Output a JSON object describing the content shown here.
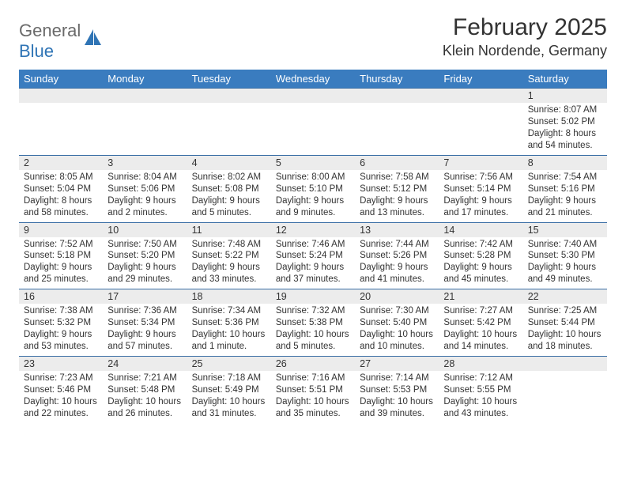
{
  "brand": {
    "main": "General",
    "sub": "Blue"
  },
  "title": "February 2025",
  "location": "Klein Nordende, Germany",
  "colors": {
    "header_bg": "#3a7cbf",
    "header_text": "#ffffff",
    "daynum_bg": "#ececec",
    "border": "#3a6ea5",
    "brand_main": "#6a6a6a",
    "brand_sub": "#2f74b5",
    "text": "#333333"
  },
  "day_headers": [
    "Sunday",
    "Monday",
    "Tuesday",
    "Wednesday",
    "Thursday",
    "Friday",
    "Saturday"
  ],
  "weeks": [
    [
      null,
      null,
      null,
      null,
      null,
      null,
      {
        "n": "1",
        "sr": "Sunrise: 8:07 AM",
        "ss": "Sunset: 5:02 PM",
        "dl": "Daylight: 8 hours and 54 minutes."
      }
    ],
    [
      {
        "n": "2",
        "sr": "Sunrise: 8:05 AM",
        "ss": "Sunset: 5:04 PM",
        "dl": "Daylight: 8 hours and 58 minutes."
      },
      {
        "n": "3",
        "sr": "Sunrise: 8:04 AM",
        "ss": "Sunset: 5:06 PM",
        "dl": "Daylight: 9 hours and 2 minutes."
      },
      {
        "n": "4",
        "sr": "Sunrise: 8:02 AM",
        "ss": "Sunset: 5:08 PM",
        "dl": "Daylight: 9 hours and 5 minutes."
      },
      {
        "n": "5",
        "sr": "Sunrise: 8:00 AM",
        "ss": "Sunset: 5:10 PM",
        "dl": "Daylight: 9 hours and 9 minutes."
      },
      {
        "n": "6",
        "sr": "Sunrise: 7:58 AM",
        "ss": "Sunset: 5:12 PM",
        "dl": "Daylight: 9 hours and 13 minutes."
      },
      {
        "n": "7",
        "sr": "Sunrise: 7:56 AM",
        "ss": "Sunset: 5:14 PM",
        "dl": "Daylight: 9 hours and 17 minutes."
      },
      {
        "n": "8",
        "sr": "Sunrise: 7:54 AM",
        "ss": "Sunset: 5:16 PM",
        "dl": "Daylight: 9 hours and 21 minutes."
      }
    ],
    [
      {
        "n": "9",
        "sr": "Sunrise: 7:52 AM",
        "ss": "Sunset: 5:18 PM",
        "dl": "Daylight: 9 hours and 25 minutes."
      },
      {
        "n": "10",
        "sr": "Sunrise: 7:50 AM",
        "ss": "Sunset: 5:20 PM",
        "dl": "Daylight: 9 hours and 29 minutes."
      },
      {
        "n": "11",
        "sr": "Sunrise: 7:48 AM",
        "ss": "Sunset: 5:22 PM",
        "dl": "Daylight: 9 hours and 33 minutes."
      },
      {
        "n": "12",
        "sr": "Sunrise: 7:46 AM",
        "ss": "Sunset: 5:24 PM",
        "dl": "Daylight: 9 hours and 37 minutes."
      },
      {
        "n": "13",
        "sr": "Sunrise: 7:44 AM",
        "ss": "Sunset: 5:26 PM",
        "dl": "Daylight: 9 hours and 41 minutes."
      },
      {
        "n": "14",
        "sr": "Sunrise: 7:42 AM",
        "ss": "Sunset: 5:28 PM",
        "dl": "Daylight: 9 hours and 45 minutes."
      },
      {
        "n": "15",
        "sr": "Sunrise: 7:40 AM",
        "ss": "Sunset: 5:30 PM",
        "dl": "Daylight: 9 hours and 49 minutes."
      }
    ],
    [
      {
        "n": "16",
        "sr": "Sunrise: 7:38 AM",
        "ss": "Sunset: 5:32 PM",
        "dl": "Daylight: 9 hours and 53 minutes."
      },
      {
        "n": "17",
        "sr": "Sunrise: 7:36 AM",
        "ss": "Sunset: 5:34 PM",
        "dl": "Daylight: 9 hours and 57 minutes."
      },
      {
        "n": "18",
        "sr": "Sunrise: 7:34 AM",
        "ss": "Sunset: 5:36 PM",
        "dl": "Daylight: 10 hours and 1 minute."
      },
      {
        "n": "19",
        "sr": "Sunrise: 7:32 AM",
        "ss": "Sunset: 5:38 PM",
        "dl": "Daylight: 10 hours and 5 minutes."
      },
      {
        "n": "20",
        "sr": "Sunrise: 7:30 AM",
        "ss": "Sunset: 5:40 PM",
        "dl": "Daylight: 10 hours and 10 minutes."
      },
      {
        "n": "21",
        "sr": "Sunrise: 7:27 AM",
        "ss": "Sunset: 5:42 PM",
        "dl": "Daylight: 10 hours and 14 minutes."
      },
      {
        "n": "22",
        "sr": "Sunrise: 7:25 AM",
        "ss": "Sunset: 5:44 PM",
        "dl": "Daylight: 10 hours and 18 minutes."
      }
    ],
    [
      {
        "n": "23",
        "sr": "Sunrise: 7:23 AM",
        "ss": "Sunset: 5:46 PM",
        "dl": "Daylight: 10 hours and 22 minutes."
      },
      {
        "n": "24",
        "sr": "Sunrise: 7:21 AM",
        "ss": "Sunset: 5:48 PM",
        "dl": "Daylight: 10 hours and 26 minutes."
      },
      {
        "n": "25",
        "sr": "Sunrise: 7:18 AM",
        "ss": "Sunset: 5:49 PM",
        "dl": "Daylight: 10 hours and 31 minutes."
      },
      {
        "n": "26",
        "sr": "Sunrise: 7:16 AM",
        "ss": "Sunset: 5:51 PM",
        "dl": "Daylight: 10 hours and 35 minutes."
      },
      {
        "n": "27",
        "sr": "Sunrise: 7:14 AM",
        "ss": "Sunset: 5:53 PM",
        "dl": "Daylight: 10 hours and 39 minutes."
      },
      {
        "n": "28",
        "sr": "Sunrise: 7:12 AM",
        "ss": "Sunset: 5:55 PM",
        "dl": "Daylight: 10 hours and 43 minutes."
      },
      null
    ]
  ]
}
